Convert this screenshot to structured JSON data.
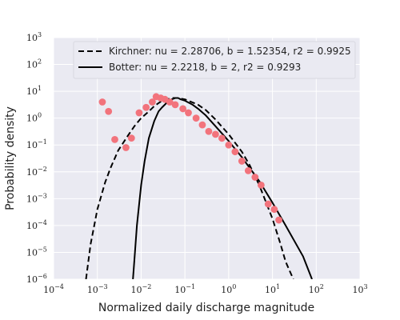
{
  "chart_data": {
    "type": "scatter",
    "xlabel": "Normalized daily discharge magnitude",
    "ylabel": "Probability density",
    "xscale": "log",
    "yscale": "log",
    "xlim": [
      0.0001,
      1000
    ],
    "ylim": [
      1e-06,
      1000
    ],
    "x_ticks": [
      {
        "base": "10",
        "exp": "−4"
      },
      {
        "base": "10",
        "exp": "−3"
      },
      {
        "base": "10",
        "exp": "−2"
      },
      {
        "base": "10",
        "exp": "−1"
      },
      {
        "base": "10",
        "exp": "0"
      },
      {
        "base": "10",
        "exp": "1"
      },
      {
        "base": "10",
        "exp": "2"
      },
      {
        "base": "10",
        "exp": "3"
      }
    ],
    "y_ticks": [
      {
        "base": "10",
        "exp": "−6"
      },
      {
        "base": "10",
        "exp": "−5"
      },
      {
        "base": "10",
        "exp": "−4"
      },
      {
        "base": "10",
        "exp": "−3"
      },
      {
        "base": "10",
        "exp": "−2"
      },
      {
        "base": "10",
        "exp": "−1"
      },
      {
        "base": "10",
        "exp": "0"
      },
      {
        "base": "10",
        "exp": "1"
      },
      {
        "base": "10",
        "exp": "2"
      },
      {
        "base": "10",
        "exp": "3"
      }
    ],
    "grid": true,
    "legend_position": "top-right",
    "colors": {
      "background": "#eaeaf2",
      "grid": "#ffffff",
      "points": "#f2737c",
      "lines": "#000000"
    },
    "series": [
      {
        "name": "Kirchner: nu = 2.28706, b = 1.52354, r2 = 0.9925",
        "kind": "line",
        "style": "dashed",
        "x": [
          0.00055,
          0.0007,
          0.001,
          0.0015,
          0.002,
          0.003,
          0.005,
          0.007,
          0.01,
          0.015,
          0.02,
          0.03,
          0.05,
          0.07,
          0.1,
          0.2,
          0.3,
          0.5,
          1,
          2,
          3,
          5,
          10,
          15,
          20,
          30
        ],
        "y": [
          1e-06,
          2e-05,
          0.0004,
          0.004,
          0.014,
          0.063,
          0.224,
          0.5,
          1.0,
          1.78,
          2.82,
          4.47,
          5.62,
          5.62,
          5.0,
          3.16,
          2.0,
          0.89,
          0.25,
          0.056,
          0.018,
          0.0032,
          0.00018,
          2.24e-05,
          4.5e-06,
          1e-06
        ]
      },
      {
        "name": "Botter: nu = 2.2218, b = 2, r2 = 0.9293",
        "kind": "line",
        "style": "solid",
        "x": [
          0.0065,
          0.007,
          0.008,
          0.01,
          0.012,
          0.015,
          0.02,
          0.025,
          0.03,
          0.04,
          0.05,
          0.06,
          0.07,
          0.08,
          0.1,
          0.15,
          0.2,
          0.3,
          0.5,
          1,
          2,
          5,
          10,
          20,
          50,
          80
        ],
        "y": [
          1e-06,
          5e-06,
          0.0001,
          0.0032,
          0.025,
          0.18,
          0.79,
          1.78,
          2.51,
          3.98,
          5.01,
          5.62,
          5.62,
          5.01,
          4.47,
          3.16,
          2.24,
          1.26,
          0.5,
          0.14,
          0.035,
          0.0045,
          0.00071,
          0.0001,
          7.1e-06,
          1e-06
        ]
      },
      {
        "name": "",
        "kind": "points",
        "x": [
          0.0013,
          0.0018,
          0.0025,
          0.0045,
          0.006,
          0.009,
          0.013,
          0.018,
          0.022,
          0.028,
          0.035,
          0.045,
          0.06,
          0.09,
          0.12,
          0.18,
          0.25,
          0.35,
          0.5,
          0.7,
          1.0,
          1.4,
          2.0,
          2.8,
          4.0,
          5.5,
          8.0,
          11.0,
          14.0
        ],
        "y": [
          3.98,
          1.78,
          0.16,
          0.08,
          0.18,
          1.58,
          2.51,
          3.98,
          6.31,
          5.62,
          5.01,
          3.98,
          3.16,
          2.24,
          1.58,
          1.0,
          0.56,
          0.32,
          0.25,
          0.178,
          0.1,
          0.056,
          0.025,
          0.011,
          0.0063,
          0.0032,
          0.00063,
          0.0004,
          0.00016
        ]
      }
    ]
  }
}
